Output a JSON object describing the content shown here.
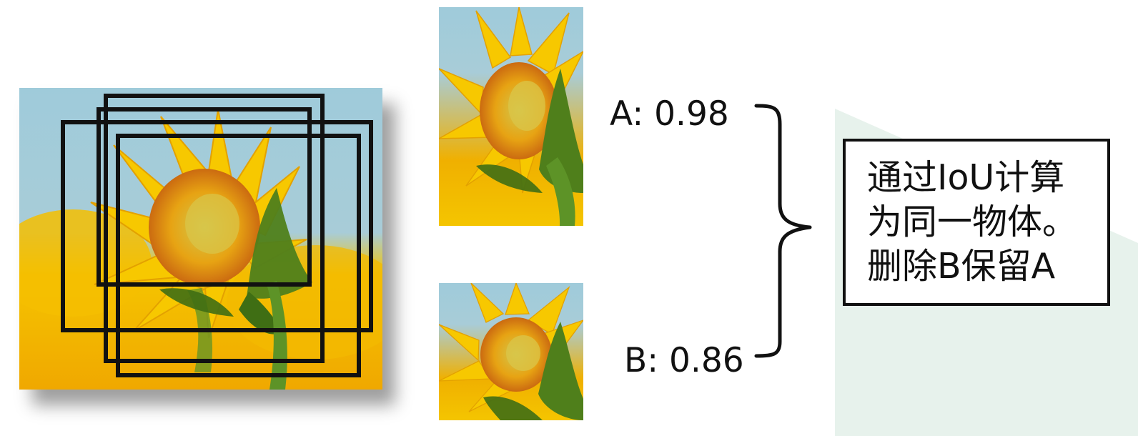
{
  "labels": {
    "score_a": "A: 0.98",
    "score_b": "B: 0.86"
  },
  "result": {
    "line1": "通过IoU计算",
    "line2": "为同一物体。",
    "line3": "删除B保留A"
  },
  "images": {
    "main": "sunflower-image",
    "crop_a": "sunflower-crop-a",
    "crop_b": "sunflower-crop-b"
  },
  "colors": {
    "sky": "#9fcbda",
    "sunflower_yellow": "#f5c400",
    "center_orange": "#e39a16",
    "leaf_green": "#4f7f1b",
    "box_line": "#111111",
    "background_shape": "#e7f2ec"
  }
}
